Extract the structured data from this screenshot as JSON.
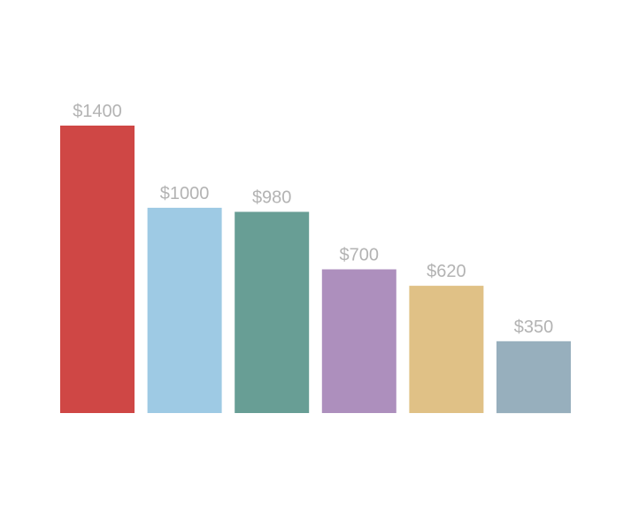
{
  "chart_data": {
    "type": "bar",
    "title": "",
    "xlabel": "",
    "ylabel": "",
    "ylim": [
      0,
      1400
    ],
    "grid": false,
    "legend": "none",
    "bars": [
      {
        "value": 1400,
        "label": "$1400",
        "color": "#cf4745"
      },
      {
        "value": 1000,
        "label": "$1000",
        "color": "#9ecae4"
      },
      {
        "value": 980,
        "label": "$980",
        "color": "#689e95"
      },
      {
        "value": 700,
        "label": "$700",
        "color": "#ad8fbd"
      },
      {
        "value": 620,
        "label": "$620",
        "color": "#e0c186"
      },
      {
        "value": 350,
        "label": "$350",
        "color": "#97afbd"
      }
    ],
    "label_color": "#b3b3b3"
  }
}
